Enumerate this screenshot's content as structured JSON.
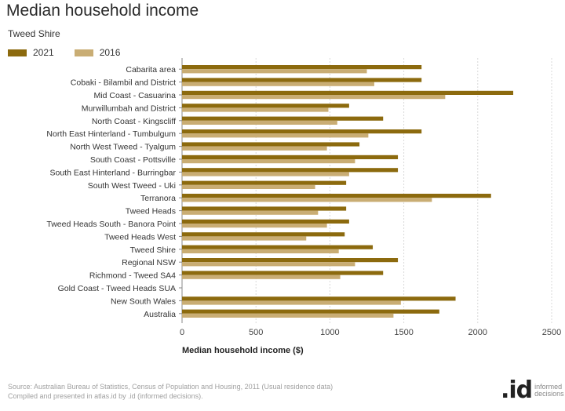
{
  "title": "Median household income",
  "subtitle": "Tweed Shire",
  "colors": {
    "series_2021": "#8c6a0e",
    "series_2016": "#c9ad74",
    "grid": "#d9d9d9",
    "axis": "#888888"
  },
  "chart_data": {
    "type": "bar",
    "orientation": "horizontal",
    "categories": [
      "Cabarita area",
      "Cobaki - Bilambil and District",
      "Mid Coast - Casuarina",
      "Murwillumbah and District",
      "North Coast - Kingscliff",
      "North East Hinterland - Tumbulgum",
      "North West Tweed - Tyalgum",
      "South Coast - Pottsville",
      "South East Hinterland - Burringbar",
      "South West Tweed - Uki",
      "Terranora",
      "Tweed Heads",
      "Tweed Heads South - Banora Point",
      "Tweed Heads West",
      "Tweed Shire",
      "Regional NSW",
      "Richmond - Tweed SA4",
      "Gold Coast - Tweed Heads SUA",
      "New South Wales",
      "Australia"
    ],
    "series": [
      {
        "name": "2021",
        "values": [
          1620,
          1620,
          2240,
          1130,
          1360,
          1620,
          1200,
          1460,
          1460,
          1110,
          2090,
          1110,
          1130,
          1100,
          1290,
          1460,
          1360,
          null,
          1850,
          1740
        ]
      },
      {
        "name": "2016",
        "values": [
          1250,
          1300,
          1780,
          990,
          1050,
          1260,
          980,
          1170,
          1130,
          900,
          1690,
          920,
          980,
          840,
          1060,
          1170,
          1070,
          null,
          1480,
          1430
        ]
      }
    ],
    "xlabel": "Median household income ($)",
    "ylabel": "",
    "xlim": [
      0,
      2500
    ],
    "xticks": [
      "0",
      "500",
      "1000",
      "1500",
      "2000",
      "2500"
    ],
    "grid": true,
    "legend_position": "top-left"
  },
  "source": {
    "line1": "Source: Australian Bureau of Statistics, Census of Population and Housing, 2011 (Usual residence data)",
    "line2": "Compiled and presented in atlas.id by .id (informed decisions)."
  },
  "logo": {
    "mark": ".id",
    "line1": "informed",
    "line2": "decisions"
  }
}
